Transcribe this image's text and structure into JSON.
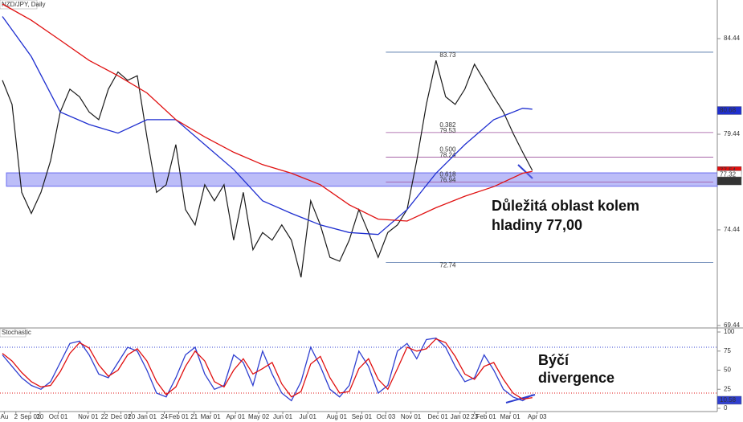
{
  "chart_data": [
    {
      "type": "line",
      "title": "NZD/JPY, Daily",
      "xlim": [
        -0.25,
        74.2
      ],
      "ylim": [
        69.31,
        86.46
      ],
      "yticks": [
        69.44,
        74.44,
        79.44,
        84.44
      ],
      "zone": {
        "range": [
          76.72,
          77.42
        ],
        "color": "#6a6cf0"
      },
      "series": [
        {
          "name": "Price",
          "color": "#1a1a1a",
          "values": [
            82.26,
            81.0,
            76.4,
            75.3,
            76.4,
            78.06,
            80.6,
            81.8,
            81.4,
            80.6,
            80.2,
            81.8,
            82.7,
            82.26,
            82.5,
            79.3,
            76.4,
            76.8,
            78.9,
            75.5,
            74.7,
            76.8,
            75.96,
            76.8,
            73.9,
            76.4,
            73.4,
            74.3,
            73.9,
            74.7,
            73.9,
            71.96,
            75.96,
            74.7,
            73.0,
            72.8,
            73.9,
            75.5,
            74.3,
            73.0,
            74.3,
            74.7,
            75.5,
            78.06,
            81.0,
            83.3,
            81.4,
            81.0,
            81.8,
            83.1,
            82.26,
            81.4,
            80.6,
            79.5,
            78.5,
            77.55
          ]
        },
        {
          "name": "MA 100",
          "color": "#1f2fd0",
          "x": [
            0,
            3,
            6,
            9,
            12,
            15,
            18,
            21,
            24,
            27,
            30,
            33,
            36,
            39,
            42,
            45,
            48,
            51,
            54,
            55
          ],
          "values": [
            85.6,
            83.5,
            80.6,
            79.95,
            79.5,
            80.2,
            80.2,
            78.9,
            77.6,
            75.96,
            75.3,
            74.7,
            74.3,
            74.2,
            75.5,
            77.4,
            78.9,
            80.2,
            80.8,
            80.75
          ]
        },
        {
          "name": "MA 200",
          "color": "#e01010",
          "x": [
            0,
            3,
            6,
            9,
            12,
            15,
            18,
            21,
            24,
            27,
            30,
            33,
            36,
            39,
            42,
            45,
            48,
            51,
            54,
            55
          ],
          "values": [
            86.25,
            85.4,
            84.36,
            83.3,
            82.5,
            81.6,
            80.2,
            79.3,
            78.5,
            77.85,
            77.4,
            76.8,
            75.75,
            75.0,
            74.9,
            75.6,
            76.2,
            76.7,
            77.4,
            77.5
          ]
        }
      ],
      "fib_from": 39.8,
      "fib_levels": [
        {
          "value": 83.73,
          "color": "#4a6fa5"
        },
        {
          "ratio": "0.382",
          "value": 79.53,
          "color": "#9c4f9c"
        },
        {
          "ratio": "0.500",
          "value": 78.24,
          "color": "#9c4f9c"
        },
        {
          "ratio": "0.618",
          "value": 76.94,
          "color": "#9c4f9c"
        },
        {
          "value": 72.74,
          "color": "#4a6fa5"
        }
      ],
      "price_markers": [
        {
          "value": 80.68,
          "color": "#1f2fd0"
        },
        {
          "value": 77.54,
          "color": "#e01010"
        },
        {
          "value": 77.32,
          "color": "#ffffff"
        },
        {
          "value": 77,
          "label": "77.00",
          "color": "#333333"
        }
      ],
      "annotation": [
        "Důležitá oblast kolem",
        "hladiny 77,00"
      ]
    },
    {
      "type": "line",
      "title": "Stochastic",
      "xlim": [
        -0.25,
        74.2
      ],
      "ylim": [
        0,
        105.3
      ],
      "yticks": [
        0,
        25,
        50,
        75,
        100
      ],
      "levels": [
        {
          "value": 80,
          "color": "#2f3fd0"
        },
        {
          "value": 20,
          "color": "#e01010"
        }
      ],
      "series": [
        {
          "name": "%K",
          "color": "#2f3fd0",
          "values": [
            70,
            55,
            40,
            30,
            25,
            35,
            60,
            85,
            88,
            70,
            45,
            40,
            60,
            80,
            75,
            50,
            20,
            15,
            40,
            70,
            80,
            45,
            25,
            30,
            70,
            60,
            30,
            75,
            45,
            20,
            10,
            35,
            80,
            55,
            25,
            15,
            30,
            75,
            55,
            20,
            30,
            75,
            85,
            65,
            90,
            92,
            80,
            55,
            35,
            40,
            70,
            50,
            25,
            15,
            10,
            18
          ]
        },
        {
          "name": "%D",
          "color": "#e01010",
          "values": [
            72,
            62,
            47,
            35,
            28,
            30,
            48,
            72,
            86,
            79,
            57,
            42,
            50,
            70,
            78,
            62,
            35,
            18,
            28,
            55,
            75,
            62,
            35,
            28,
            50,
            65,
            45,
            52,
            60,
            32,
            15,
            22,
            58,
            68,
            40,
            20,
            22,
            52,
            65,
            38,
            25,
            52,
            80,
            75,
            78,
            91,
            86,
            68,
            45,
            38,
            55,
            60,
            38,
            20,
            12,
            14
          ]
        }
      ],
      "price_markers": [
        {
          "value": 10.58,
          "color": "#2f3fd0"
        }
      ],
      "xticks": [
        {
          "value": 0.2,
          "label": "Au"
        },
        {
          "value": 1.4,
          "label": "2"
        },
        {
          "value": 2.9,
          "label": "Sep 01"
        },
        {
          "value": 3.9,
          "label": "20"
        },
        {
          "value": 5.8,
          "label": "Oct 01"
        },
        {
          "value": 8.9,
          "label": "Nov 01"
        },
        {
          "value": 10.6,
          "label": "22"
        },
        {
          "value": 12.3,
          "label": "Dec 01"
        },
        {
          "value": 13.4,
          "label": "20"
        },
        {
          "value": 15,
          "label": "Jan 01"
        },
        {
          "value": 16.8,
          "label": "24"
        },
        {
          "value": 18.3,
          "label": "Feb 01"
        },
        {
          "value": 19.9,
          "label": "21"
        },
        {
          "value": 21.6,
          "label": "Mar 01"
        },
        {
          "value": 24.2,
          "label": "Apr 01"
        },
        {
          "value": 26.6,
          "label": "May 02"
        },
        {
          "value": 29.1,
          "label": "Jun 01"
        },
        {
          "value": 31.7,
          "label": "Jul 01"
        },
        {
          "value": 34.7,
          "label": "Aug 01"
        },
        {
          "value": 37.3,
          "label": "Sep 01"
        },
        {
          "value": 39.8,
          "label": "Oct 03"
        },
        {
          "value": 42.4,
          "label": "Nov 01"
        },
        {
          "value": 45.2,
          "label": "Dec 01"
        },
        {
          "value": 47.5,
          "label": "Jan 02"
        },
        {
          "value": 49,
          "label": "23"
        },
        {
          "value": 50.2,
          "label": "Feb 01"
        },
        {
          "value": 52.7,
          "label": "Mar 01"
        },
        {
          "value": 55.5,
          "label": "Apr 03"
        }
      ],
      "annotation": [
        "Býčí",
        "divergence"
      ]
    }
  ]
}
